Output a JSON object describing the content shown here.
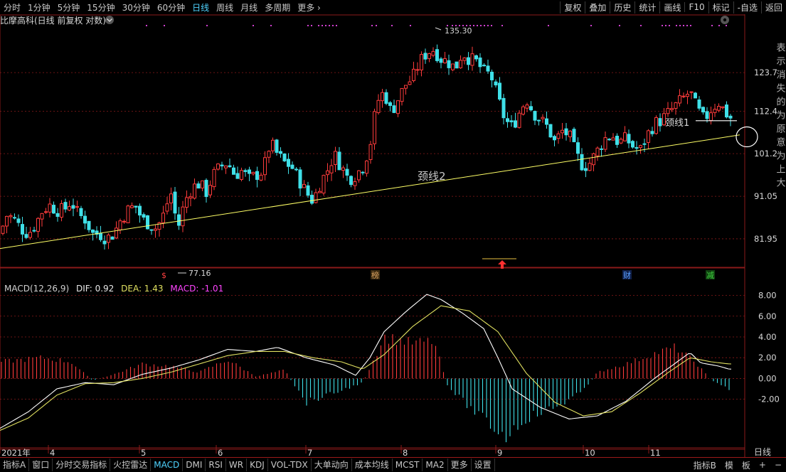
{
  "toolbar": {
    "periods": [
      "分时",
      "1分钟",
      "5分钟",
      "15分钟",
      "30分钟",
      "60分钟",
      "日线",
      "周线",
      "月线",
      "多周期",
      "更多"
    ],
    "active_period": "日线",
    "right_tools": [
      "复权",
      "叠加",
      "历史",
      "统计",
      "画线",
      "F10",
      "标记",
      "-自选",
      "返回"
    ]
  },
  "header": {
    "title": "比摩高科(日线 前复权 对数)",
    "dropdown_icon": "chevron-down-icon",
    "settings_icon": "gear-icon"
  },
  "macd_header": {
    "name": "MACD(12,26,9)",
    "dif": "DIF: 0.92",
    "dea": "DEA: 1.43",
    "macd": "MACD: -1.01"
  },
  "annotations": {
    "high_label": "135.30",
    "low_label": "77.16",
    "neckline1": "颈线1",
    "neckline2": "颈线2",
    "event_markers": [
      "$",
      "榜",
      "财",
      "减"
    ]
  },
  "right_text": "表示消失的为原意为上大",
  "bottom_right_labels": [
    "日线"
  ],
  "bottom_tabs": [
    "指标A",
    "窗口",
    "分时交易指标",
    "火控雷达",
    "MACD",
    "DMI",
    "RSI",
    "WR",
    "KDJ",
    "VOL-TDX",
    "大单动向",
    "成本均线",
    "MCST",
    "MA2",
    "更多",
    "设置"
  ],
  "bottom_active": "MACD",
  "bottom_right": [
    "指标B",
    "模",
    "板",
    "+",
    "−"
  ],
  "colors": {
    "up": "#ff3b3b",
    "down": "#3fe0e8",
    "neck": "#ffff66",
    "grid": "#8b1a1a",
    "dea": "#e0e060",
    "macd_text": "#ff44ff"
  },
  "chart_data": {
    "type": "candlestick",
    "title": "比摩高科(日线 前复权 对数)",
    "scale": "log",
    "price_ticks": [
      81.95,
      91.05,
      101.2,
      112.4,
      123.7
    ],
    "price_range": [
      76.5,
      138
    ],
    "x_tick_labels": [
      "2021年",
      "4",
      "5",
      "6",
      "7",
      "8",
      "9",
      "10",
      "11"
    ],
    "high": 135.3,
    "low": 77.16,
    "macd_ticks": [
      8.0,
      6.0,
      4.0,
      2.0,
      0.0,
      -2.0
    ],
    "macd_range": [
      -6.2,
      9.2
    ],
    "neckline2": {
      "from": [
        0,
        80.0
      ],
      "to": [
        1040,
        106.0
      ]
    },
    "anchors": [
      [
        0,
        83
      ],
      [
        10,
        87
      ],
      [
        20,
        86
      ],
      [
        30,
        84
      ],
      [
        40,
        83
      ],
      [
        50,
        85
      ],
      [
        60,
        88
      ],
      [
        70,
        89
      ],
      [
        80,
        88
      ],
      [
        90,
        88
      ],
      [
        100,
        90
      ],
      [
        110,
        87
      ],
      [
        120,
        86
      ],
      [
        130,
        83
      ],
      [
        140,
        83
      ],
      [
        150,
        82
      ],
      [
        160,
        83
      ],
      [
        170,
        86
      ],
      [
        180,
        88
      ],
      [
        190,
        89
      ],
      [
        200,
        86
      ],
      [
        210,
        85
      ],
      [
        220,
        84
      ],
      [
        230,
        87
      ],
      [
        240,
        92
      ],
      [
        250,
        84
      ],
      [
        260,
        90
      ],
      [
        270,
        93
      ],
      [
        280,
        94
      ],
      [
        290,
        92
      ],
      [
        300,
        96
      ],
      [
        310,
        98
      ],
      [
        320,
        99
      ],
      [
        330,
        96
      ],
      [
        340,
        97
      ],
      [
        350,
        95
      ],
      [
        360,
        96
      ],
      [
        370,
        97
      ],
      [
        380,
        104
      ],
      [
        390,
        101
      ],
      [
        400,
        99
      ],
      [
        410,
        98
      ],
      [
        420,
        95
      ],
      [
        430,
        92
      ],
      [
        440,
        90
      ],
      [
        450,
        94
      ],
      [
        460,
        97
      ],
      [
        470,
        101
      ],
      [
        480,
        98
      ],
      [
        490,
        95
      ],
      [
        500,
        96
      ],
      [
        510,
        98
      ],
      [
        520,
        103
      ],
      [
        530,
        115
      ],
      [
        540,
        118
      ],
      [
        550,
        112
      ],
      [
        560,
        116
      ],
      [
        570,
        120
      ],
      [
        580,
        122
      ],
      [
        590,
        127
      ],
      [
        600,
        130
      ],
      [
        610,
        131
      ],
      [
        620,
        128
      ],
      [
        630,
        127
      ],
      [
        640,
        125
      ],
      [
        650,
        130
      ],
      [
        660,
        128
      ],
      [
        670,
        127
      ],
      [
        680,
        124
      ],
      [
        690,
        123
      ],
      [
        700,
        116
      ],
      [
        710,
        110
      ],
      [
        720,
        108
      ],
      [
        730,
        112
      ],
      [
        740,
        116
      ],
      [
        750,
        112
      ],
      [
        760,
        110
      ],
      [
        770,
        108
      ],
      [
        780,
        104
      ],
      [
        790,
        107
      ],
      [
        800,
        106
      ],
      [
        810,
        101
      ],
      [
        820,
        98
      ],
      [
        830,
        99
      ],
      [
        840,
        102
      ],
      [
        850,
        105
      ],
      [
        860,
        106
      ],
      [
        870,
        104
      ],
      [
        880,
        105
      ],
      [
        890,
        103
      ],
      [
        900,
        102
      ],
      [
        910,
        106
      ],
      [
        920,
        109
      ],
      [
        930,
        110
      ],
      [
        940,
        112
      ],
      [
        950,
        114
      ],
      [
        960,
        116
      ],
      [
        970,
        118
      ],
      [
        980,
        113
      ],
      [
        990,
        110
      ],
      [
        1000,
        113
      ],
      [
        1010,
        115
      ],
      [
        1020,
        112
      ],
      [
        1030,
        110
      ]
    ],
    "dif_anchors": [
      [
        0,
        -4.8
      ],
      [
        40,
        -3.2
      ],
      [
        80,
        -1.0
      ],
      [
        120,
        -0.4
      ],
      [
        160,
        -0.6
      ],
      [
        200,
        0.4
      ],
      [
        240,
        1.0
      ],
      [
        280,
        1.8
      ],
      [
        320,
        2.8
      ],
      [
        360,
        2.6
      ],
      [
        390,
        3.0
      ],
      [
        430,
        2.0
      ],
      [
        470,
        1.3
      ],
      [
        500,
        0.3
      ],
      [
        520,
        2.0
      ],
      [
        540,
        4.5
      ],
      [
        570,
        6.4
      ],
      [
        600,
        8.1
      ],
      [
        620,
        7.6
      ],
      [
        650,
        6.3
      ],
      [
        680,
        4.8
      ],
      [
        700,
        2.0
      ],
      [
        720,
        -1.0
      ],
      [
        760,
        -2.8
      ],
      [
        800,
        -3.9
      ],
      [
        840,
        -3.6
      ],
      [
        880,
        -2.2
      ],
      [
        920,
        0.0
      ],
      [
        950,
        1.5
      ],
      [
        970,
        2.5
      ],
      [
        985,
        1.5
      ],
      [
        1010,
        1.2
      ],
      [
        1025,
        0.9
      ]
    ],
    "dea_anchors": [
      [
        0,
        -5.0
      ],
      [
        40,
        -3.8
      ],
      [
        80,
        -1.6
      ],
      [
        120,
        -0.5
      ],
      [
        160,
        -0.4
      ],
      [
        200,
        0.0
      ],
      [
        240,
        0.6
      ],
      [
        280,
        1.4
      ],
      [
        320,
        2.2
      ],
      [
        360,
        2.6
      ],
      [
        400,
        2.6
      ],
      [
        440,
        2.0
      ],
      [
        480,
        1.6
      ],
      [
        510,
        0.9
      ],
      [
        540,
        2.3
      ],
      [
        580,
        5.0
      ],
      [
        620,
        7.0
      ],
      [
        660,
        6.5
      ],
      [
        700,
        4.5
      ],
      [
        740,
        0.5
      ],
      [
        780,
        -2.3
      ],
      [
        820,
        -3.6
      ],
      [
        860,
        -3.2
      ],
      [
        900,
        -1.4
      ],
      [
        940,
        0.6
      ],
      [
        970,
        2.0
      ],
      [
        1000,
        1.6
      ],
      [
        1025,
        1.4
      ]
    ],
    "macd_anchors": [
      [
        0,
        1.6
      ],
      [
        60,
        2.0
      ],
      [
        100,
        1.6
      ],
      [
        130,
        -0.2
      ],
      [
        160,
        0.4
      ],
      [
        200,
        1.4
      ],
      [
        240,
        1.2
      ],
      [
        280,
        0.6
      ],
      [
        320,
        1.8
      ],
      [
        360,
        0.2
      ],
      [
        400,
        0.8
      ],
      [
        430,
        -2.3
      ],
      [
        470,
        -1.4
      ],
      [
        510,
        -0.4
      ],
      [
        540,
        4.0
      ],
      [
        580,
        3.4
      ],
      [
        610,
        3.6
      ],
      [
        630,
        -0.8
      ],
      [
        670,
        -3.4
      ],
      [
        710,
        -5.6
      ],
      [
        740,
        -3.8
      ],
      [
        780,
        -2.8
      ],
      [
        820,
        -1.2
      ],
      [
        840,
        0.6
      ],
      [
        880,
        1.4
      ],
      [
        920,
        2.4
      ],
      [
        950,
        3.0
      ],
      [
        980,
        1.4
      ],
      [
        1000,
        -0.2
      ],
      [
        1025,
        -1.0
      ]
    ]
  }
}
